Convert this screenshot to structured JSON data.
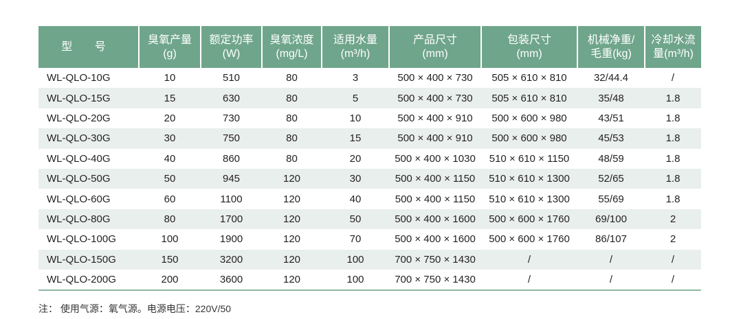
{
  "table": {
    "headers": [
      [
        "型 号",
        ""
      ],
      [
        "臭氧产量",
        "(g)"
      ],
      [
        "额定功率",
        "(W)"
      ],
      [
        "臭氧浓度",
        "(mg/L)"
      ],
      [
        "适用水量",
        "(m³/h)"
      ],
      [
        "产品尺寸",
        "(mm)"
      ],
      [
        "包装尺寸",
        "(mm)"
      ],
      [
        "机械净重/",
        "毛重(kg)"
      ],
      [
        "冷却水流",
        "量(m³/h)"
      ]
    ],
    "rows": [
      [
        "WL-QLO-10G",
        "10",
        "510",
        "80",
        "3",
        "500 × 400 × 730",
        "505 × 610 × 810",
        "32/44.4",
        "/"
      ],
      [
        "WL-QLO-15G",
        "15",
        "630",
        "80",
        "5",
        "500 × 400 × 730",
        "505 × 610 × 810",
        "35/48",
        "1.8"
      ],
      [
        "WL-QLO-20G",
        "20",
        "730",
        "80",
        "10",
        "500 × 400 × 910",
        "500 × 600 × 980",
        "43/51",
        "1.8"
      ],
      [
        "WL-QLO-30G",
        "30",
        "750",
        "80",
        "15",
        "500 × 400 × 910",
        "500 × 600 × 980",
        "45/53",
        "1.8"
      ],
      [
        "WL-QLO-40G",
        "40",
        "860",
        "80",
        "20",
        "500 × 400 × 1030",
        "510 × 610 × 1150",
        "48/59",
        "1.8"
      ],
      [
        "WL-QLO-50G",
        "50",
        "945",
        "120",
        "30",
        "500 × 400 × 1150",
        "510 × 610 × 1300",
        "52/65",
        "1.8"
      ],
      [
        "WL-QLO-60G",
        "60",
        "1100",
        "120",
        "40",
        "500 × 400 × 1150",
        "510 × 610 × 1300",
        "55/69",
        "1.8"
      ],
      [
        "WL-QLO-80G",
        "80",
        "1700",
        "120",
        "50",
        "500 × 400 × 1600",
        "500 × 600 × 1760",
        "69/100",
        "2"
      ],
      [
        "WL-QLO-100G",
        "100",
        "1900",
        "120",
        "70",
        "500 × 400 × 1600",
        "500 × 600 × 1760",
        "86/107",
        "2"
      ],
      [
        "WL-QLO-150G",
        "150",
        "3200",
        "120",
        "100",
        "700 × 750 × 1430",
        "/",
        "/",
        "/"
      ],
      [
        "WL-QLO-200G",
        "200",
        "3600",
        "120",
        "100",
        "700 × 750 × 1430",
        "/",
        "/",
        "/"
      ]
    ]
  },
  "note": "注： 使用气源：氧气源。电源电压：220V/50",
  "colors": {
    "header_bg": "#6fa58b",
    "row_shade": "#e9efec"
  }
}
